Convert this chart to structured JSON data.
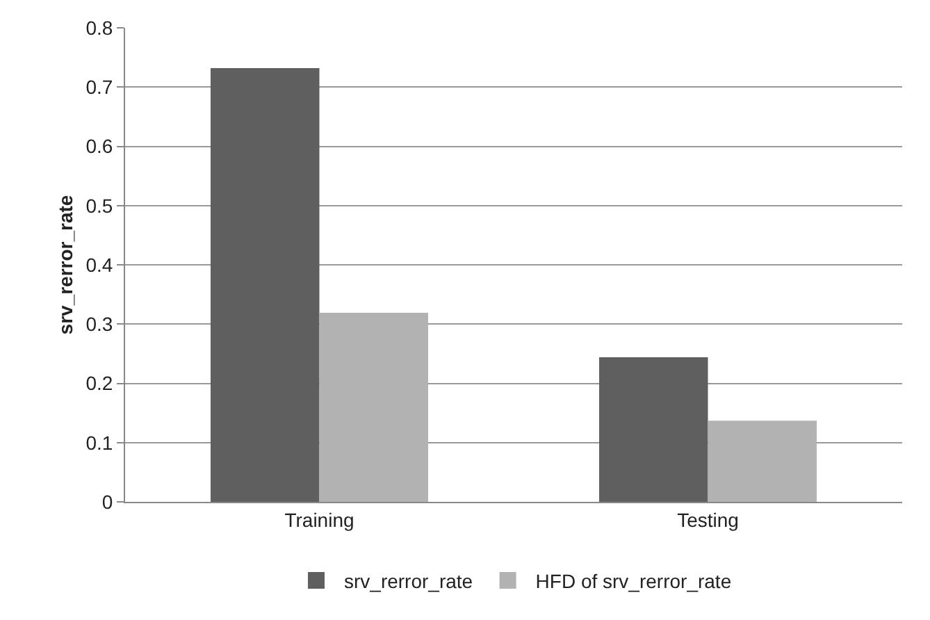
{
  "chart_data": {
    "type": "bar",
    "ylabel": "srv_rerror_rate",
    "categories": [
      "Training",
      "Testing"
    ],
    "series": [
      {
        "name": "srv_rerror_rate",
        "color": "#5f5f5f",
        "values": [
          0.732,
          0.244
        ]
      },
      {
        "name": "HFD of srv_rerror_rate",
        "color": "#b2b2b2",
        "values": [
          0.319,
          0.137
        ]
      }
    ],
    "ylim": [
      0,
      0.8
    ],
    "yticks": [
      0,
      0.1,
      0.2,
      0.3,
      0.4,
      0.5,
      0.6,
      0.7,
      0.8
    ],
    "grid": "y",
    "legend": "bottom"
  }
}
